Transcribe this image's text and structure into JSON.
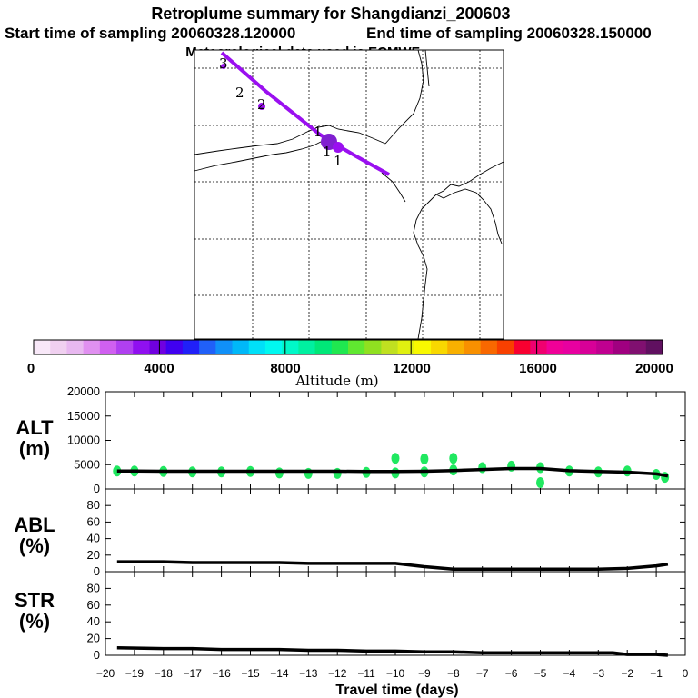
{
  "header": {
    "title": "Retroplume summary for Shangdianzi_200603",
    "start_time": "Start time of sampling 20060328.120000",
    "end_time": "End time of sampling 20060328.150000",
    "met_line": "Meteorological data used is ECMWF"
  },
  "colorbar": {
    "label": "Altitude (m)",
    "ticks": [
      "0",
      "4000",
      "8000",
      "12000",
      "16000",
      "20000"
    ],
    "colors": [
      "#f8e8f8",
      "#f0d0f0",
      "#e8b8f0",
      "#e090f0",
      "#d060f0",
      "#b040f0",
      "#9010f0",
      "#7000e0",
      "#4000f0",
      "#2020f8",
      "#2060f8",
      "#1090f8",
      "#00b8f8",
      "#00e0f8",
      "#00f8f0",
      "#00f8c8",
      "#00f0a0",
      "#00e878",
      "#20e850",
      "#60e830",
      "#90e020",
      "#c0e020",
      "#e0f010",
      "#f8f800",
      "#f8d800",
      "#f8b000",
      "#f89000",
      "#f86800",
      "#f84000",
      "#f80030",
      "#f00070",
      "#f00098",
      "#e800a0",
      "#d80098",
      "#c00090",
      "#a00080",
      "#801070",
      "#601060"
    ]
  },
  "map_markers": [
    {
      "label": "3"
    },
    {
      "label": "2"
    },
    {
      "label": "2"
    },
    {
      "label": "1"
    },
    {
      "label": "1"
    },
    {
      "label": "1"
    }
  ],
  "chart_data": [
    {
      "type": "line",
      "name": "ALT",
      "ylabel_line1": "ALT",
      "ylabel_line2": "(m)",
      "xlabel": "Travel time (days)",
      "x": [
        -19.6,
        -19,
        -18,
        -17,
        -16,
        -15,
        -14,
        -13,
        -12,
        -11,
        -10,
        -9,
        -8,
        -7,
        -6,
        -5,
        -4,
        -3,
        -2,
        -1,
        -0.6
      ],
      "values": [
        3700,
        3700,
        3650,
        3650,
        3650,
        3650,
        3650,
        3650,
        3650,
        3600,
        3600,
        3650,
        3800,
        4000,
        4200,
        4200,
        3750,
        3600,
        3450,
        3100,
        2700
      ],
      "ylim": [
        0,
        20000
      ],
      "yticks": [
        "0",
        "5000",
        "10000",
        "15000",
        "20000"
      ],
      "scatter": [
        {
          "x": -19.6,
          "y": 3700
        },
        {
          "x": -19,
          "y": 3700
        },
        {
          "x": -18,
          "y": 3600
        },
        {
          "x": -17,
          "y": 3500
        },
        {
          "x": -16,
          "y": 3500
        },
        {
          "x": -15,
          "y": 3600
        },
        {
          "x": -14,
          "y": 3300
        },
        {
          "x": -13,
          "y": 3200
        },
        {
          "x": -12,
          "y": 3200
        },
        {
          "x": -11,
          "y": 3400
        },
        {
          "x": -10,
          "y": 3300
        },
        {
          "x": -9,
          "y": 3500
        },
        {
          "x": -8,
          "y": 3900
        },
        {
          "x": -7,
          "y": 4400
        },
        {
          "x": -6,
          "y": 4700
        },
        {
          "x": -5,
          "y": 4400
        },
        {
          "x": -4,
          "y": 3700
        },
        {
          "x": -3,
          "y": 3500
        },
        {
          "x": -2,
          "y": 3700
        },
        {
          "x": -1,
          "y": 3000
        },
        {
          "x": -0.7,
          "y": 2400
        },
        {
          "x": -5,
          "y": 1300
        },
        {
          "x": -9,
          "y": 6200
        },
        {
          "x": -10,
          "y": 6300
        },
        {
          "x": -8,
          "y": 6300
        }
      ]
    },
    {
      "type": "line",
      "name": "ABL",
      "ylabel_line1": "ABL",
      "ylabel_line2": "(%)",
      "x": [
        -19.6,
        -18,
        -17,
        -16,
        -15,
        -14,
        -13,
        -12,
        -11,
        -10,
        -9,
        -8,
        -7,
        -6,
        -5,
        -4,
        -3,
        -2,
        -1,
        -0.6
      ],
      "values": [
        12,
        12,
        11,
        11,
        11,
        11,
        10,
        10,
        10,
        10,
        6,
        3,
        3,
        3,
        3,
        3,
        3,
        4,
        7,
        9
      ],
      "ylim": [
        0,
        100
      ],
      "yticks": [
        "0",
        "20",
        "40",
        "60",
        "80"
      ]
    },
    {
      "type": "line",
      "name": "STR",
      "ylabel_line1": "STR",
      "ylabel_line2": "(%)",
      "x": [
        -19.6,
        -18,
        -17,
        -16,
        -15,
        -14,
        -13,
        -12,
        -11,
        -10,
        -9,
        -8,
        -7,
        -6,
        -5,
        -4,
        -3,
        -2.5,
        -2,
        -1,
        -0.6
      ],
      "values": [
        9,
        8,
        8,
        7,
        7,
        7,
        6,
        6,
        5,
        5,
        4,
        4,
        3,
        3,
        3,
        3,
        3,
        3,
        1,
        1,
        0
      ],
      "ylim": [
        0,
        100
      ],
      "yticks": [
        "0",
        "20",
        "40",
        "60",
        "80"
      ]
    }
  ],
  "xaxis": {
    "ticks": [
      -20,
      -19,
      -18,
      -17,
      -16,
      -15,
      -14,
      -13,
      -12,
      -11,
      -10,
      -9,
      -8,
      -7,
      -6,
      -5,
      -4,
      -3,
      -2,
      -1,
      0
    ],
    "tick_labels": [
      "−20",
      "−19",
      "−18",
      "−17",
      "−16",
      "−15",
      "−14",
      "−13",
      "−12",
      "−11",
      "−10",
      "−9",
      "−8",
      "−7",
      "−6",
      "−5",
      "−4",
      "−3",
      "−2",
      "−1",
      "0"
    ]
  },
  "styles": {
    "track": "#9a10f0",
    "points": "#20e860",
    "line": "#000000"
  }
}
